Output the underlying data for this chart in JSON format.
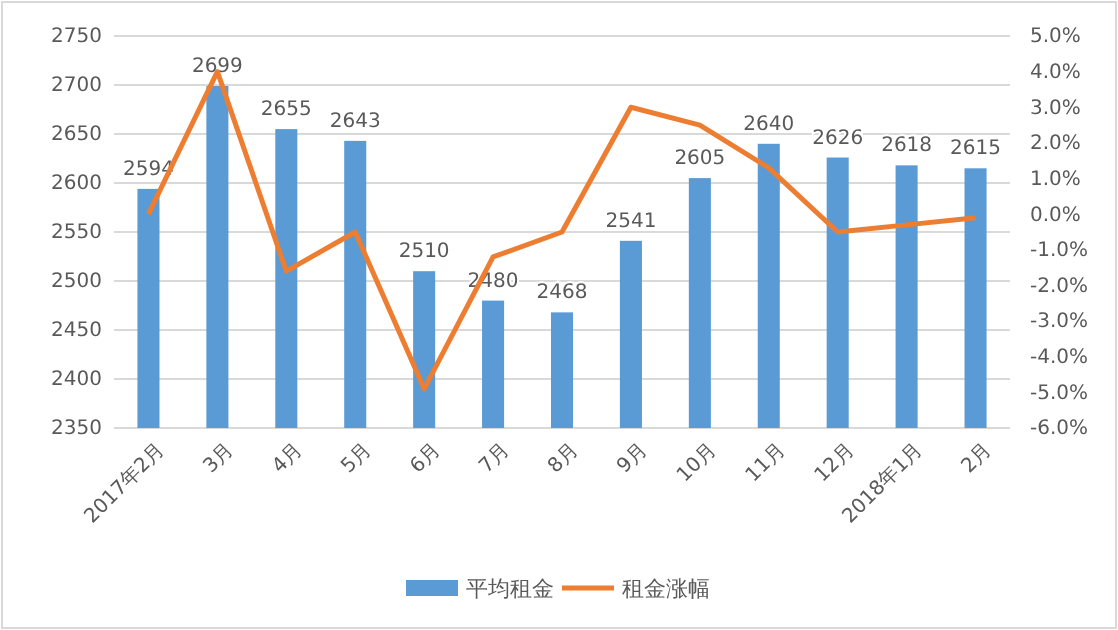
{
  "chart_data": {
    "type": "bar",
    "categories": [
      "2017年2月",
      "3月",
      "4月",
      "5月",
      "6月",
      "7月",
      "8月",
      "9月",
      "10月",
      "11月",
      "12月",
      "2018年1月",
      "2月"
    ],
    "series": [
      {
        "name": "平均租金",
        "color": "#5b9bd5",
        "values": [
          2594,
          2699,
          2655,
          2643,
          2510,
          2480,
          2468,
          2541,
          2605,
          2640,
          2626,
          2618,
          2615
        ],
        "value_labels": [
          "2594",
          "2699",
          "2655",
          "2643",
          "2510",
          "2480",
          "2468",
          "2541",
          "2605",
          "2640",
          "2626",
          "2618",
          "2615"
        ]
      },
      {
        "name": "租金涨幅",
        "type": "line",
        "axis": "y2",
        "color": "#ed7d31",
        "values": [
          0.0,
          4.0,
          -1.6,
          -0.5,
          -4.9,
          -1.2,
          -0.5,
          3.0,
          2.5,
          1.3,
          -0.5,
          -0.3,
          -0.1
        ]
      }
    ],
    "ylim": [
      2350,
      2750
    ],
    "yticks": [
      2350,
      2400,
      2450,
      2500,
      2550,
      2600,
      2650,
      2700,
      2750
    ],
    "y2lim": [
      -6,
      5
    ],
    "y2ticks": [
      {
        "value": -6,
        "label": "-6.0%"
      },
      {
        "value": -5,
        "label": "-5.0%"
      },
      {
        "value": -4,
        "label": "-4.0%"
      },
      {
        "value": -3,
        "label": "-3.0%"
      },
      {
        "value": -2,
        "label": "-2.0%"
      },
      {
        "value": -1,
        "label": "-1.0%"
      },
      {
        "value": 0,
        "label": "0.0%"
      },
      {
        "value": 1,
        "label": "1.0%"
      },
      {
        "value": 2,
        "label": "2.0%"
      },
      {
        "value": 3,
        "label": "3.0%"
      },
      {
        "value": 4,
        "label": "4.0%"
      },
      {
        "value": 5,
        "label": "5.0%"
      }
    ],
    "grid": "y",
    "legend": "bottom",
    "marker": "none",
    "line_style": "solid"
  }
}
